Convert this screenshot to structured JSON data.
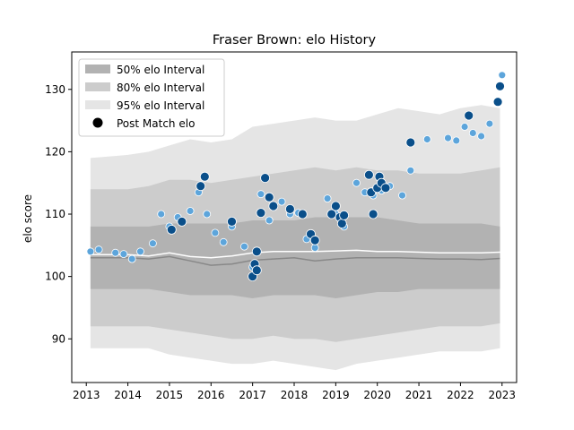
{
  "chart_data": {
    "type": "scatter",
    "title": "Fraser Brown: elo History",
    "xlabel": "",
    "ylabel": "elo score",
    "xlim": [
      2012.65,
      2023.35
    ],
    "ylim": [
      83,
      136
    ],
    "x_ticks": [
      2013,
      2014,
      2015,
      2016,
      2017,
      2018,
      2019,
      2020,
      2021,
      2022,
      2023
    ],
    "x_tick_labels": [
      "2013",
      "2014",
      "2015",
      "2016",
      "2017",
      "2018",
      "2019",
      "2020",
      "2021",
      "2022",
      "2023"
    ],
    "y_ticks": [
      90,
      100,
      110,
      120,
      130
    ],
    "y_tick_labels": [
      "90",
      "100",
      "110",
      "120",
      "130"
    ],
    "grid": false,
    "legend_position": "top-left",
    "legend": [
      {
        "label": "50% elo Interval",
        "kind": "band",
        "color": "#b2b2b2"
      },
      {
        "label": "80% elo Interval",
        "kind": "band",
        "color": "#cccccc"
      },
      {
        "label": "95% elo Interval",
        "kind": "band",
        "color": "#e5e5e5"
      },
      {
        "label": "Post Match elo",
        "kind": "marker",
        "color": "#000000"
      }
    ],
    "colors": {
      "band50": "#b2b2b2",
      "band80": "#cccccc",
      "band95": "#e5e5e5",
      "median_line": "#888888",
      "mean_line": "#ffffff",
      "point_light": "#5da5db",
      "point_dark": "#0a4f8a"
    },
    "bands": {
      "x": [
        2013.1,
        2014.0,
        2014.5,
        2015.0,
        2015.5,
        2016.0,
        2016.5,
        2017.0,
        2017.5,
        2018.0,
        2018.5,
        2019.0,
        2019.5,
        2020.0,
        2020.5,
        2021.0,
        2021.5,
        2022.0,
        2022.5,
        2022.95
      ],
      "p95_low": [
        88.5,
        88.5,
        88.5,
        87.5,
        87.0,
        86.5,
        86.0,
        86.0,
        86.5,
        86.0,
        85.5,
        85.0,
        86.0,
        86.5,
        87.0,
        87.5,
        88.0,
        88.0,
        88.0,
        88.5
      ],
      "p80_low": [
        92.0,
        92.0,
        92.0,
        91.5,
        91.0,
        90.5,
        90.0,
        90.0,
        90.5,
        90.0,
        90.0,
        89.5,
        90.0,
        90.5,
        91.0,
        91.5,
        92.0,
        92.0,
        92.0,
        92.5
      ],
      "p50_low": [
        98.0,
        98.0,
        98.0,
        97.5,
        97.0,
        97.0,
        97.0,
        96.5,
        97.0,
        97.0,
        97.0,
        96.5,
        97.0,
        97.5,
        97.5,
        98.0,
        98.0,
        98.0,
        98.0,
        98.0
      ],
      "p50_high": [
        108.0,
        108.0,
        108.0,
        108.5,
        108.5,
        108.5,
        108.5,
        109.0,
        109.0,
        109.0,
        109.5,
        109.5,
        109.5,
        109.5,
        109.0,
        108.5,
        108.5,
        108.5,
        108.5,
        108.0
      ],
      "p80_high": [
        114.0,
        114.0,
        114.5,
        115.5,
        115.5,
        115.0,
        115.5,
        116.0,
        116.5,
        117.0,
        117.5,
        117.0,
        117.5,
        117.0,
        117.0,
        116.5,
        116.5,
        116.5,
        117.0,
        117.5
      ],
      "p95_high": [
        119.0,
        119.5,
        120.0,
        121.0,
        122.0,
        121.5,
        122.0,
        124.0,
        124.5,
        125.0,
        125.5,
        125.0,
        125.0,
        126.0,
        127.0,
        126.5,
        126.0,
        127.0,
        127.5,
        127.0
      ],
      "median": [
        103.0,
        103.0,
        102.8,
        103.2,
        102.5,
        101.8,
        102.0,
        102.6,
        102.8,
        103.0,
        102.5,
        102.8,
        103.0,
        103.0,
        103.0,
        102.9,
        102.8,
        102.8,
        102.7,
        102.9
      ],
      "mean": [
        103.5,
        103.5,
        103.3,
        103.8,
        103.2,
        103.0,
        103.3,
        103.8,
        104.0,
        104.0,
        104.0,
        104.1,
        104.2,
        104.0,
        104.0,
        103.9,
        103.8,
        103.8,
        103.8,
        103.9
      ]
    },
    "post_match_elo": {
      "x": [
        2013.1,
        2013.3,
        2013.7,
        2013.9,
        2014.1,
        2014.3,
        2014.6,
        2014.8,
        2015.0,
        2015.2,
        2015.5,
        2015.7,
        2015.9,
        2016.1,
        2016.3,
        2016.5,
        2016.8,
        2017.0,
        2017.2,
        2017.4,
        2017.7,
        2017.9,
        2018.1,
        2018.3,
        2018.5,
        2018.8,
        2019.0,
        2019.2,
        2019.5,
        2019.7,
        2019.9,
        2020.1,
        2020.3,
        2020.6,
        2020.8,
        2021.2,
        2021.7,
        2021.9,
        2022.1,
        2022.3,
        2022.5,
        2022.7,
        2022.9,
        2023.0
      ],
      "y": [
        104.0,
        104.3,
        103.8,
        103.6,
        102.8,
        104.0,
        105.3,
        110.0,
        108.0,
        109.5,
        110.5,
        113.5,
        110.0,
        107.0,
        105.5,
        108.0,
        104.8,
        101.5,
        113.2,
        109.0,
        112.0,
        110.0,
        110.2,
        106.0,
        104.6,
        112.5,
        110.0,
        108.0,
        115.0,
        113.5,
        113.0,
        113.8,
        114.5,
        113.0,
        117.0,
        122.0,
        122.2,
        121.8,
        124.0,
        123.0,
        122.5,
        124.5,
        128.0,
        132.3
      ],
      "dark_x": [
        2015.05,
        2015.3,
        2015.75,
        2015.85,
        2016.5,
        2017.0,
        2017.05,
        2017.1,
        2017.1,
        2017.2,
        2017.3,
        2017.4,
        2017.5,
        2017.9,
        2018.2,
        2018.4,
        2018.5,
        2018.9,
        2019.0,
        2019.1,
        2019.15,
        2019.2,
        2019.8,
        2019.85,
        2019.9,
        2020.0,
        2020.05,
        2020.1,
        2020.2,
        2020.8,
        2022.2,
        2022.9,
        2022.95
      ],
      "dark_y": [
        107.5,
        108.8,
        114.5,
        116.0,
        108.8,
        100.0,
        102.0,
        101.0,
        104.0,
        110.2,
        115.8,
        112.7,
        111.3,
        110.8,
        110.0,
        106.8,
        105.8,
        110.0,
        111.3,
        109.5,
        108.5,
        109.8,
        116.3,
        113.5,
        110.0,
        114.2,
        116.0,
        115.0,
        114.2,
        121.5,
        125.8,
        128.0,
        130.5
      ]
    }
  }
}
